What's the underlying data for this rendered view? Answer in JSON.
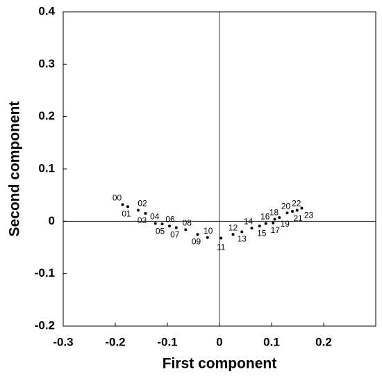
{
  "chart_data": {
    "type": "scatter",
    "xlabel": "First component",
    "ylabel": "Second component",
    "labels": [
      "00",
      "01",
      "02",
      "03",
      "04",
      "05",
      "06",
      "07",
      "08",
      "09",
      "10",
      "11",
      "12",
      "13",
      "14",
      "15",
      "16",
      "17",
      "18",
      "19",
      "20",
      "21",
      "22",
      "23"
    ],
    "x": [
      -0.186,
      -0.176,
      -0.156,
      -0.142,
      -0.123,
      -0.11,
      -0.096,
      -0.083,
      -0.065,
      -0.042,
      -0.023,
      0.003,
      0.026,
      0.043,
      0.062,
      0.077,
      0.089,
      0.103,
      0.106,
      0.115,
      0.13,
      0.14,
      0.149,
      0.158
    ],
    "values": [
      0.032,
      0.028,
      0.021,
      0.015,
      -0.004,
      -0.005,
      -0.009,
      -0.012,
      -0.016,
      -0.025,
      -0.031,
      -0.032,
      -0.025,
      -0.02,
      -0.013,
      -0.009,
      -0.004,
      -0.003,
      0.004,
      0.007,
      0.016,
      0.019,
      0.021,
      0.025
    ],
    "color": "#000000",
    "xlim": [
      -0.3,
      0.3
    ],
    "xticks": [
      -0.3,
      -0.2,
      -0.1,
      0,
      0.1,
      0.2
    ],
    "ylim": [
      -0.2,
      0.4
    ],
    "yticks": [
      -0.2,
      -0.1,
      0,
      0.1,
      0.2,
      0.3,
      0.4
    ]
  }
}
